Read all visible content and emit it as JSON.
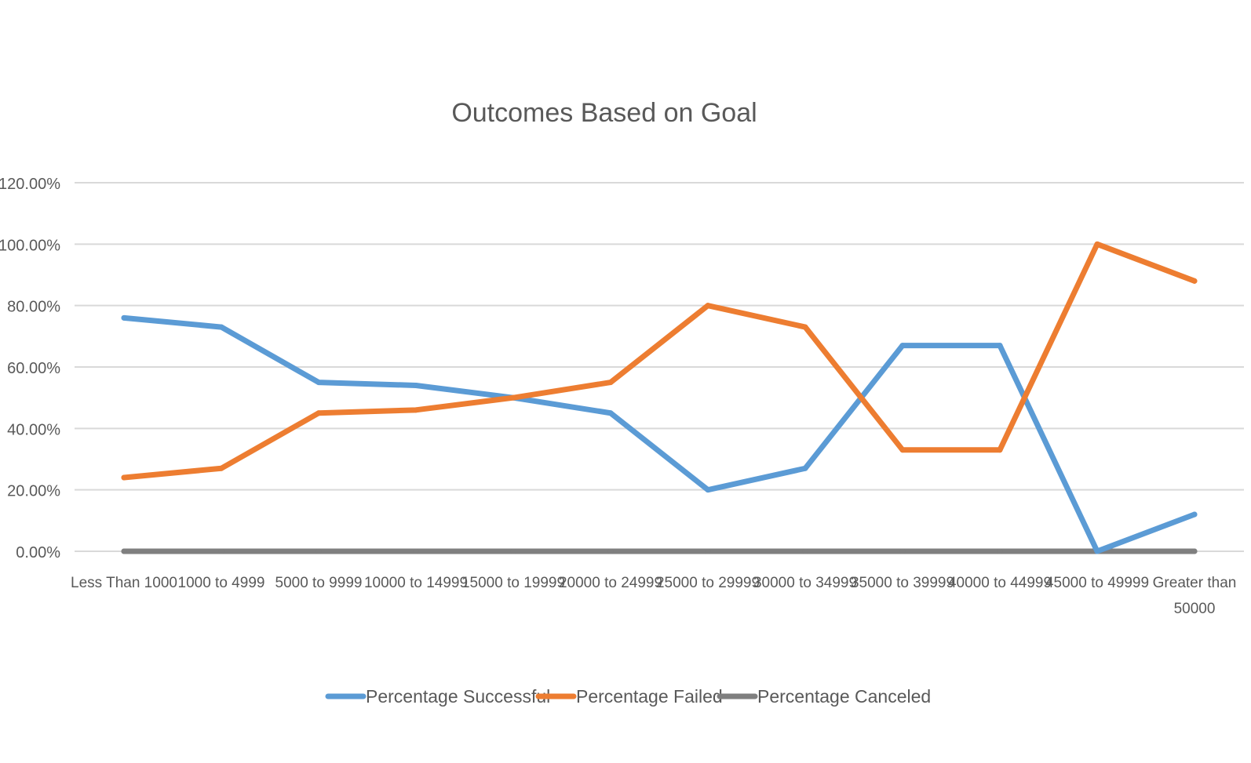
{
  "chart_data": {
    "type": "line",
    "title": "Outcomes Based on Goal",
    "xlabel": "",
    "ylabel": "",
    "ylim": [
      0,
      1.2
    ],
    "yticks": [
      "0.00%",
      "20.00%",
      "40.00%",
      "60.00%",
      "80.00%",
      "100.00%",
      "120.00%"
    ],
    "grid": true,
    "legend_position": "bottom",
    "categories": [
      [
        "Less Than 1000"
      ],
      [
        "1000 to 4999"
      ],
      [
        "5000 to 9999"
      ],
      [
        "10000 to 14999"
      ],
      [
        "15000 to 19999"
      ],
      [
        "20000 to 24999"
      ],
      [
        "25000 to 29999"
      ],
      [
        "30000 to 34999"
      ],
      [
        "35000 to 39999"
      ],
      [
        "40000 to 44999"
      ],
      [
        "45000 to 49999"
      ],
      [
        "Greater than",
        "50000"
      ]
    ],
    "series": [
      {
        "name": "Percentage Successful",
        "color": "#5b9bd5",
        "values": [
          0.76,
          0.73,
          0.55,
          0.54,
          0.5,
          0.45,
          0.2,
          0.27,
          0.67,
          0.67,
          0.0,
          0.12
        ]
      },
      {
        "name": "Percentage Failed",
        "color": "#ed7d31",
        "values": [
          0.24,
          0.27,
          0.45,
          0.46,
          0.5,
          0.55,
          0.8,
          0.73,
          0.33,
          0.33,
          1.0,
          0.88
        ]
      },
      {
        "name": "Percentage Canceled",
        "color": "#7f7f7f",
        "values": [
          0,
          0,
          0,
          0,
          0,
          0,
          0,
          0,
          0,
          0,
          0,
          0
        ]
      }
    ]
  }
}
